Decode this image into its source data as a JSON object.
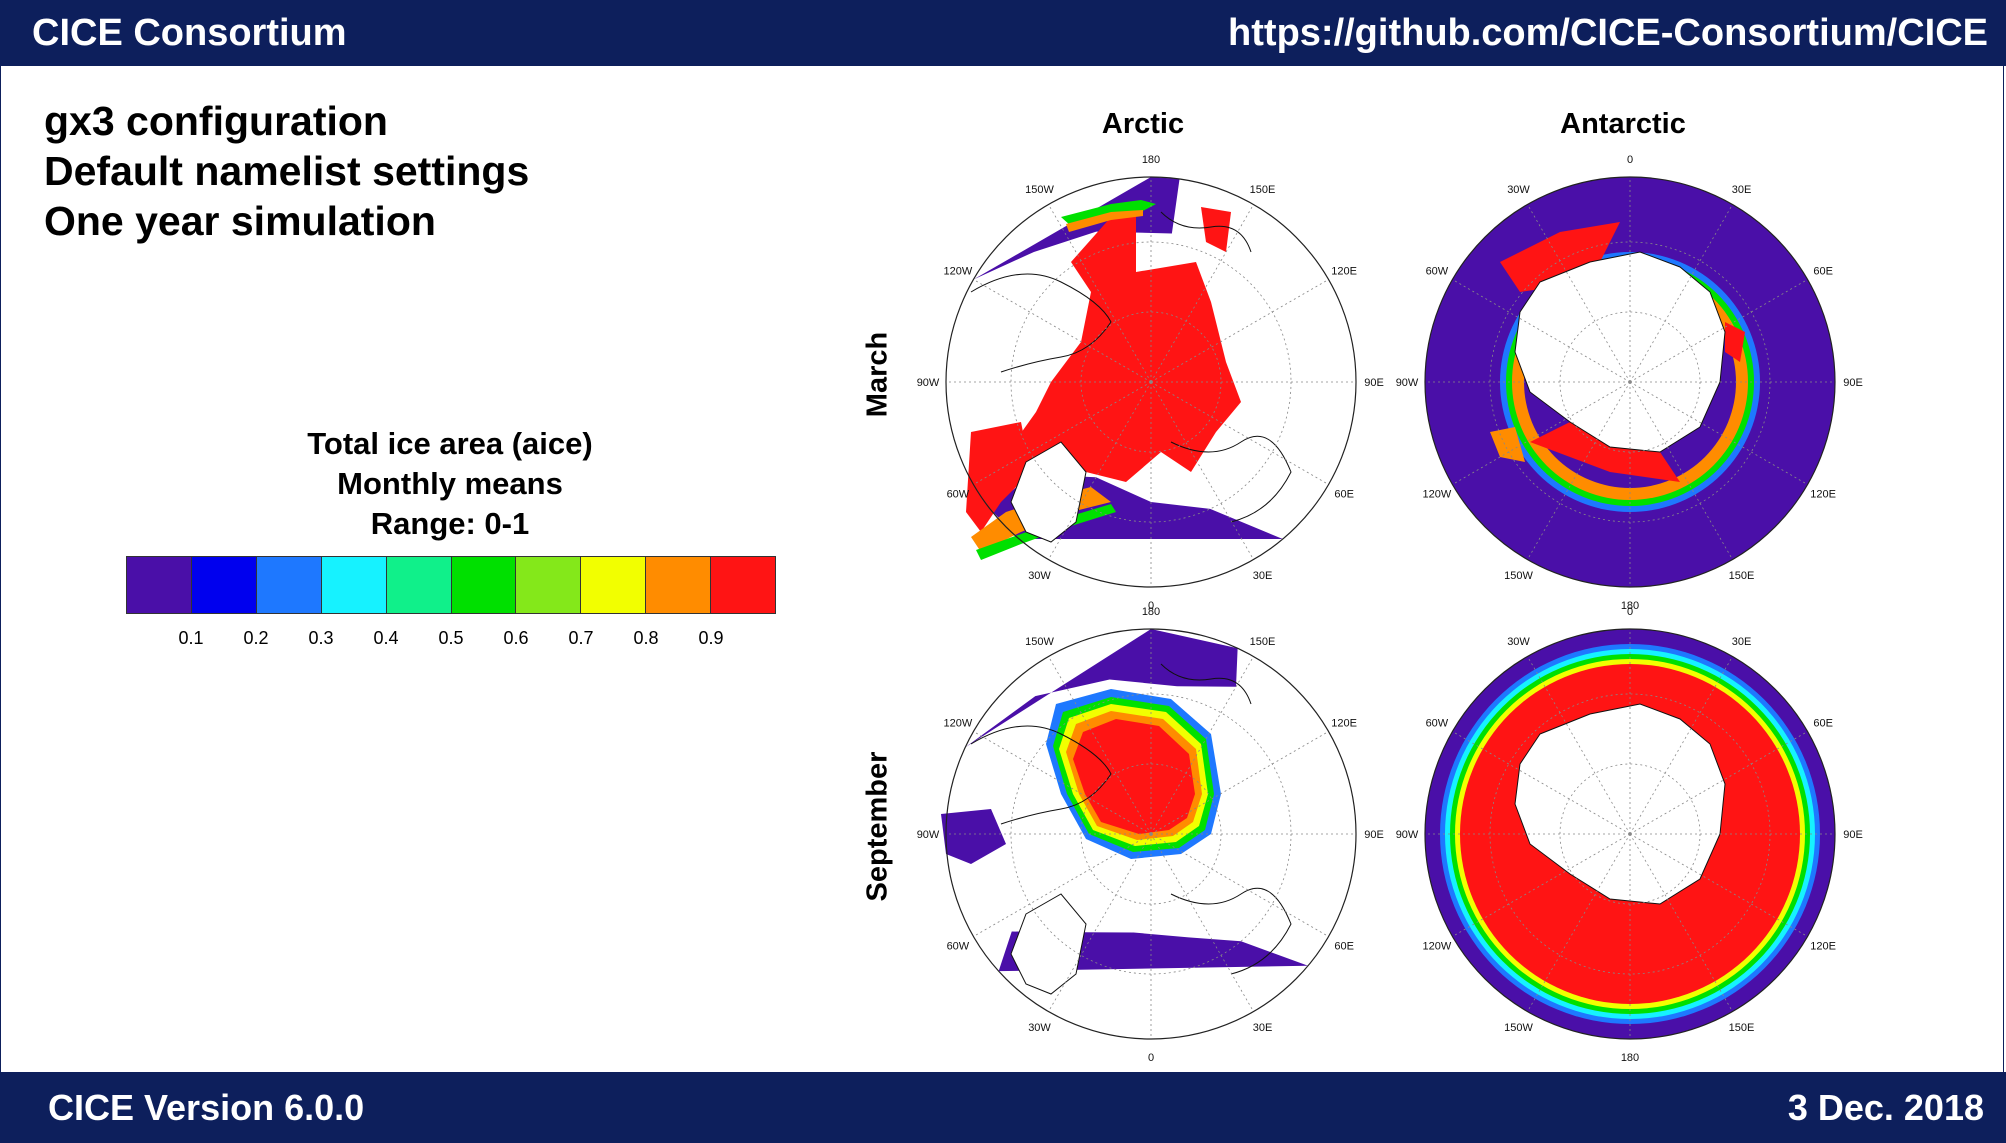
{
  "header": {
    "left": "CICE Consortium",
    "right": "https://github.com/CICE-Consortium/CICE"
  },
  "footer": {
    "left": "CICE Version 6.0.0",
    "right": "3 Dec. 2018"
  },
  "intro": [
    "gx3 configuration",
    "Default namelist settings",
    "One year simulation"
  ],
  "legend": {
    "title_lines": [
      "Total ice area (aice)",
      "Monthly means",
      "Range: 0-1"
    ],
    "colors": [
      "#4a0fa8",
      "#0000ee",
      "#1e78ff",
      "#16f2ff",
      "#10f08a",
      "#00e000",
      "#84e81a",
      "#f2ff00",
      "#ff8c00",
      "#ff1414"
    ],
    "ticks": [
      "0.1",
      "0.2",
      "0.3",
      "0.4",
      "0.5",
      "0.6",
      "0.7",
      "0.8",
      "0.9"
    ]
  },
  "columns": [
    "Arctic",
    "Antarctic"
  ],
  "rows": [
    "March",
    "September"
  ],
  "map_labels": {
    "arctic": [
      "180",
      "150E",
      "120E",
      "90E",
      "60E",
      "30E",
      "0",
      "30W",
      "60W",
      "90W",
      "120W",
      "150W"
    ],
    "antarctic": [
      "0",
      "30E",
      "60E",
      "90E",
      "120E",
      "150E",
      "180",
      "150W",
      "120W",
      "90W",
      "60W",
      "30W"
    ]
  },
  "ice_colors": {
    "ocean_low": "#4a0fa8",
    "high": "#ff1414",
    "mid": "#ff8c00",
    "edge_green": "#00e000",
    "edge_cyan": "#16f2ff",
    "edge_blue": "#1e78ff",
    "edge_yellow": "#f2ff00",
    "land": "#ffffff",
    "outline": "#111111"
  }
}
